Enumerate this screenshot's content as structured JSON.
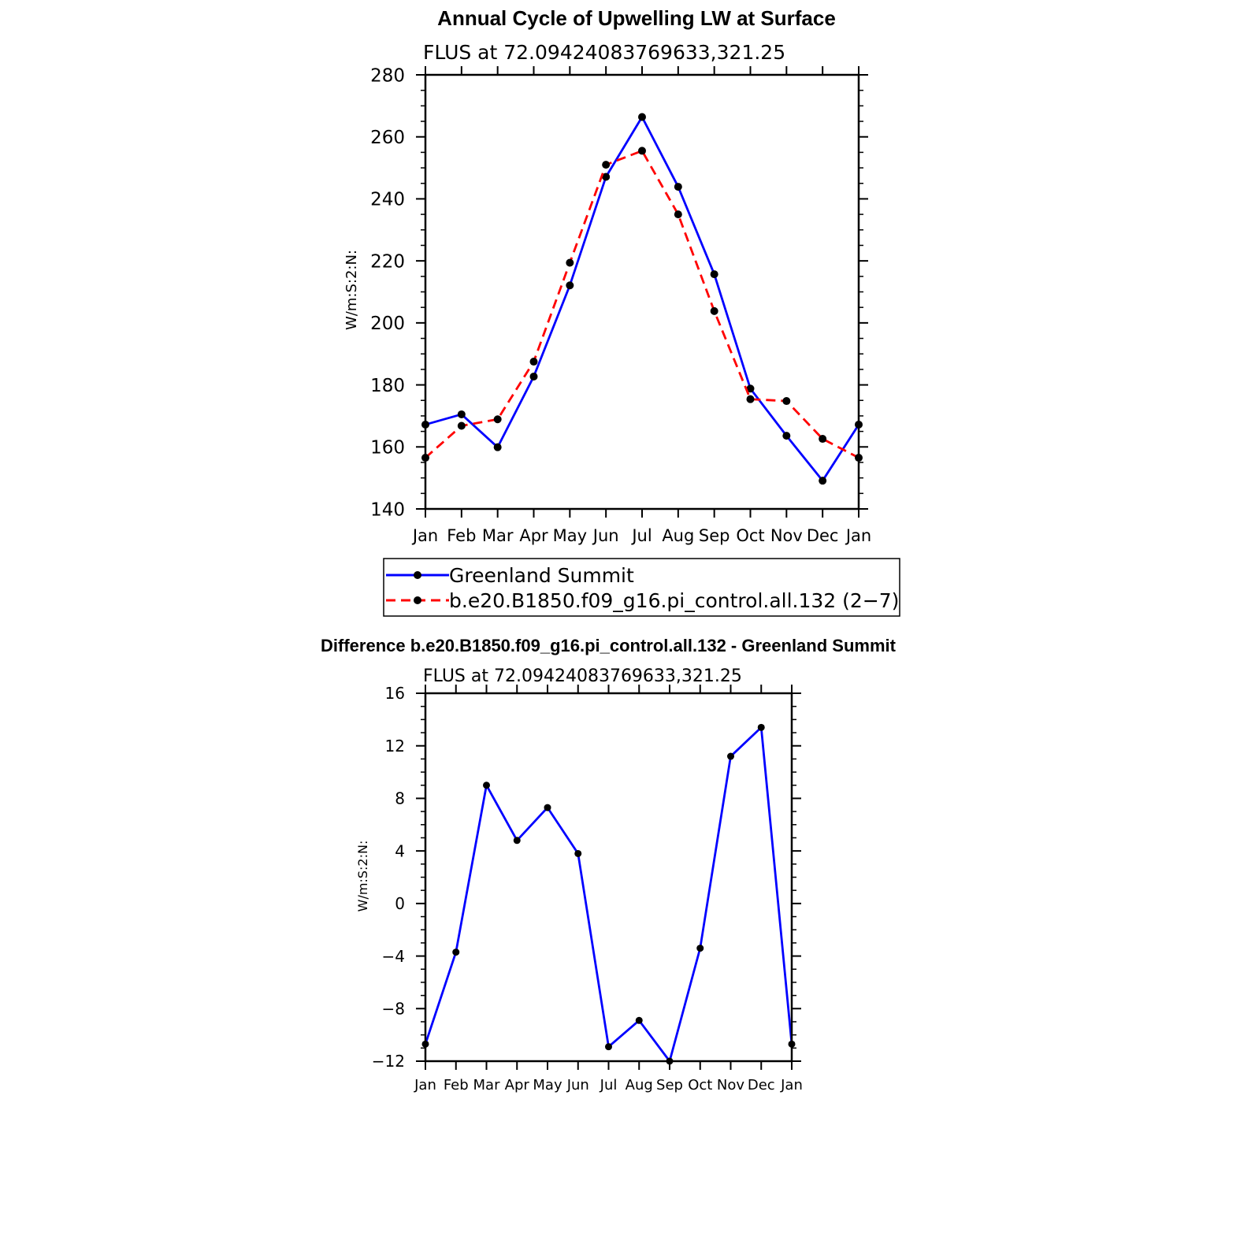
{
  "chart_data": [
    {
      "type": "line",
      "title": "Annual Cycle of Upwelling LW at Surface",
      "subtitle": "FLUS at 72.09424083769633,321.25",
      "ylabel": "W/m:S:2:N:",
      "xlabel": "",
      "ylim": [
        140,
        280
      ],
      "yticks": [
        "140",
        "160",
        "180",
        "200",
        "220",
        "240",
        "260",
        "280"
      ],
      "categories": [
        "Jan",
        "Feb",
        "Mar",
        "Apr",
        "May",
        "Jun",
        "Jul",
        "Aug",
        "Sep",
        "Oct",
        "Nov",
        "Dec",
        "Jan"
      ],
      "legend_position": "below",
      "series": [
        {
          "name": "Greenland Summit",
          "color": "#0000ff",
          "dash": "solid",
          "values": [
            167.2,
            170.5,
            159.9,
            182.7,
            212.1,
            247.1,
            266.4,
            243.9,
            215.7,
            178.8,
            163.6,
            149.1,
            167.2
          ]
        },
        {
          "name": "b.e20.B1850.f09_g16.pi_control.all.132 (2−7)",
          "color": "#ff0000",
          "dash": "dashed",
          "values": [
            156.5,
            166.8,
            168.9,
            187.5,
            219.4,
            251.0,
            255.5,
            235.0,
            203.8,
            175.4,
            174.8,
            162.6,
            156.5
          ]
        }
      ]
    },
    {
      "type": "line",
      "title": "Difference b.e20.B1850.f09_g16.pi_control.all.132 - Greenland Summit",
      "subtitle": "FLUS at 72.09424083769633,321.25",
      "ylabel": "W/m:S:2:N:",
      "xlabel": "",
      "ylim": [
        -12,
        16
      ],
      "yticks": [
        "−12",
        "−8",
        "−4",
        "0",
        "4",
        "8",
        "12",
        "16"
      ],
      "categories": [
        "Jan",
        "Feb",
        "Mar",
        "Apr",
        "May",
        "Jun",
        "Jul",
        "Aug",
        "Sep",
        "Oct",
        "Nov",
        "Dec",
        "Jan"
      ],
      "series": [
        {
          "color": "#0000ff",
          "values": [
            -10.7,
            -3.7,
            9.0,
            4.8,
            7.3,
            3.8,
            -10.9,
            -8.9,
            -12.0,
            -3.4,
            11.2,
            13.4,
            -10.7
          ]
        }
      ]
    }
  ]
}
